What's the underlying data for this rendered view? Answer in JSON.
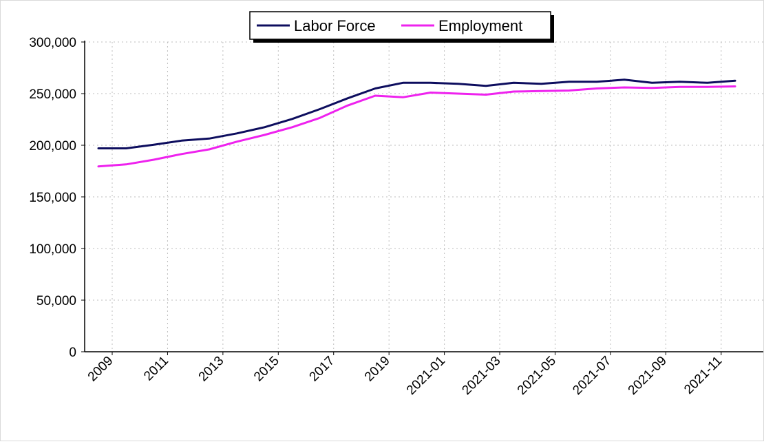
{
  "chart_data": {
    "type": "line",
    "title": "",
    "xlabel": "",
    "ylabel": "",
    "ylim": [
      0,
      300000
    ],
    "yticks": [
      0,
      50000,
      100000,
      150000,
      200000,
      250000,
      300000
    ],
    "ytick_labels": [
      "0",
      "50,000",
      "100,000",
      "150,000",
      "200,000",
      "250,000",
      "300,000"
    ],
    "xtick_labels": [
      "2009",
      "2011",
      "2013",
      "2015",
      "2017",
      "2019",
      "2021-01",
      "2021-03",
      "2021-05",
      "2021-07",
      "2021-09",
      "2021-11"
    ],
    "x": [
      "2009",
      "2010",
      "2011",
      "2012",
      "2013",
      "2014",
      "2015",
      "2016",
      "2017",
      "2018",
      "2019",
      "2020",
      "2021-01",
      "2021-02",
      "2021-03",
      "2021-04",
      "2021-05",
      "2021-06",
      "2021-07",
      "2021-08",
      "2021-09",
      "2021-10",
      "2021-11",
      "2021-12"
    ],
    "grid": true,
    "legend_position": "top-center",
    "series": [
      {
        "name": "Labor Force",
        "color": "#0d0d5e",
        "values": [
          197000,
          197000,
          200500,
          204500,
          206500,
          211500,
          217500,
          225500,
          235000,
          245500,
          255000,
          260500,
          260500,
          259500,
          257500,
          260500,
          259500,
          261500,
          261500,
          263500,
          260500,
          261500,
          260500,
          262500
        ]
      },
      {
        "name": "Employment",
        "color": "#ee22ee",
        "values": [
          179500,
          181500,
          186000,
          191500,
          196000,
          203500,
          210000,
          217500,
          226500,
          238500,
          248000,
          246500,
          251000,
          250000,
          249000,
          252000,
          252500,
          253000,
          255000,
          256000,
          255500,
          256500,
          256500,
          257000
        ]
      }
    ]
  }
}
